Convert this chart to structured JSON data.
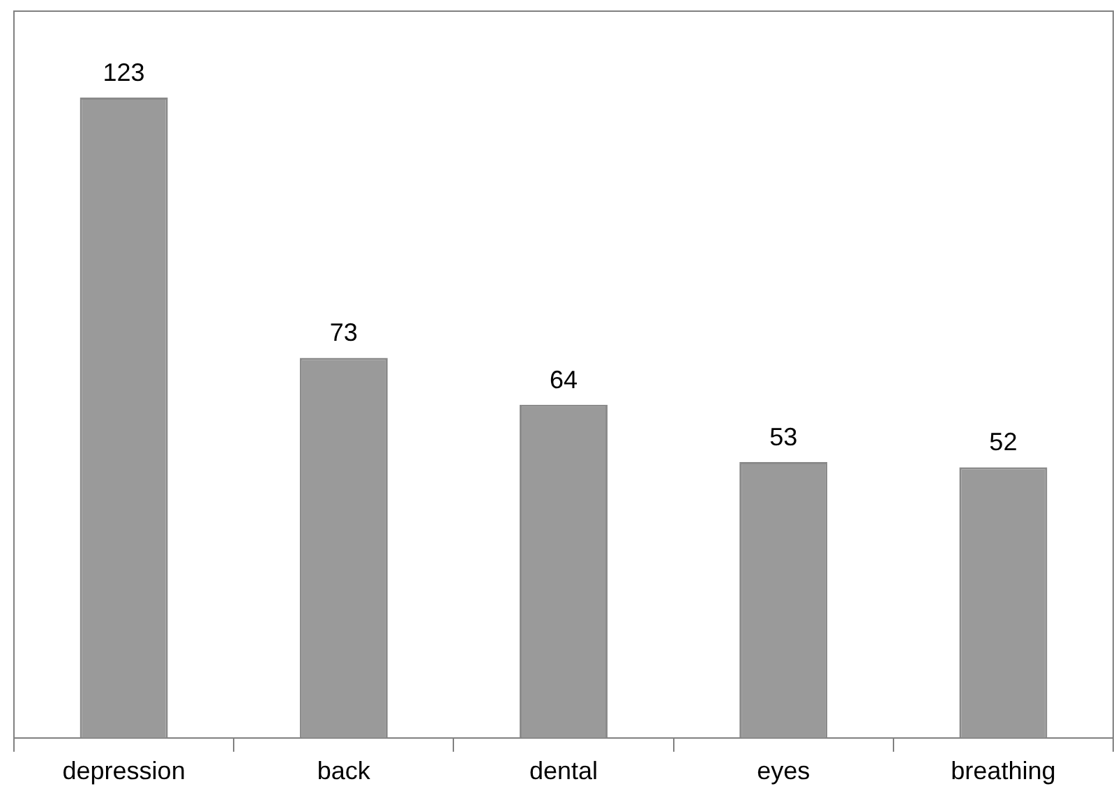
{
  "chart_data": {
    "type": "bar",
    "categories": [
      "depression",
      "back",
      "dental",
      "eyes",
      "breathing"
    ],
    "values": [
      123,
      73,
      64,
      53,
      52
    ],
    "color": "#9a9a9a",
    "data_labels": true,
    "grid": false,
    "legend": false
  }
}
